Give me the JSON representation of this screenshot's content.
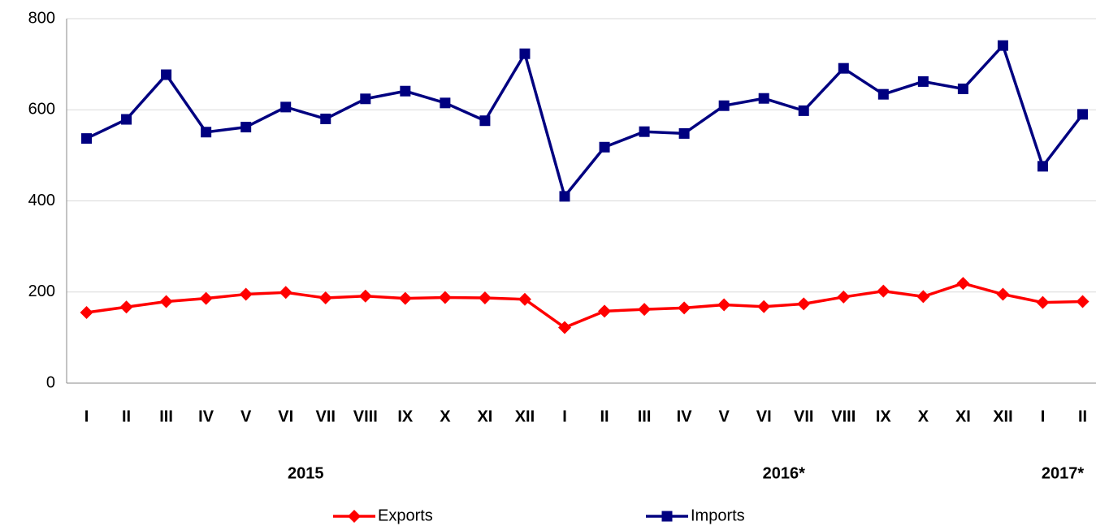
{
  "chart_data": {
    "type": "line",
    "categories": [
      "I",
      "II",
      "III",
      "IV",
      "V",
      "VI",
      "VII",
      "VIII",
      "IX",
      "X",
      "XI",
      "XII",
      "I",
      "II",
      "III",
      "IV",
      "V",
      "VI",
      "VII",
      "VIII",
      "IX",
      "X",
      "XI",
      "XII",
      "I",
      "II"
    ],
    "year_groups": [
      {
        "label": "2015",
        "count": 12
      },
      {
        "label": "2016*",
        "count": 12
      },
      {
        "label": "2017*",
        "count": 2
      }
    ],
    "series": [
      {
        "name": "Exports",
        "color": "#ff0000",
        "marker": "diamond",
        "values": [
          155,
          167,
          179,
          186,
          195,
          199,
          187,
          191,
          186,
          188,
          187,
          184,
          122,
          158,
          162,
          165,
          172,
          168,
          174,
          189,
          202,
          190,
          219,
          195,
          177,
          179
        ]
      },
      {
        "name": "Imports",
        "color": "#000080",
        "marker": "square",
        "values": [
          537,
          579,
          677,
          551,
          562,
          606,
          580,
          624,
          641,
          615,
          576,
          723,
          410,
          518,
          552,
          548,
          609,
          625,
          598,
          691,
          634,
          662,
          646,
          741,
          476,
          590
        ]
      }
    ],
    "ylim": [
      0,
      800
    ],
    "yticks": [
      0,
      200,
      400,
      600,
      800
    ],
    "grid": true,
    "legend": "bottom"
  }
}
